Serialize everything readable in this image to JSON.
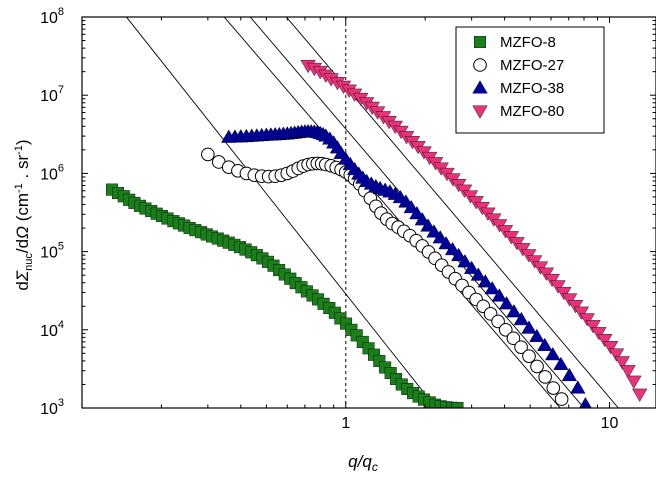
{
  "chart_data": {
    "type": "scatter",
    "title": "",
    "xlabel": {
      "main": "q/q",
      "sub": "c"
    },
    "ylabel": {
      "prefix": "d",
      "sigma": "Σ",
      "sub": "nuc",
      "mid": "/d",
      "omega": "Ω",
      "units_open": " (cm",
      "sup": "-1",
      "units_mid": " . sr",
      "units_close": ")"
    },
    "x_scale": "log",
    "y_scale": "log",
    "xlim": [
      0.1,
      15
    ],
    "ylim": [
      1000,
      100000000
    ],
    "x_tick_labels": [
      {
        "value": 1,
        "text": "1"
      },
      {
        "value": 10,
        "text": "10"
      }
    ],
    "y_tick_labels": [
      {
        "value": 1000,
        "base": "10",
        "exp": "3"
      },
      {
        "value": 10000,
        "base": "10",
        "exp": "4"
      },
      {
        "value": 100000,
        "base": "10",
        "exp": "5"
      },
      {
        "value": 1000000,
        "base": "10",
        "exp": "6"
      },
      {
        "value": 10000000,
        "base": "10",
        "exp": "7"
      },
      {
        "value": 100000000,
        "base": "10",
        "exp": "8"
      }
    ],
    "grid": false,
    "legend_position": "top-right",
    "vertical_reference_line": 1,
    "reference_lines": [
      {
        "x": [
          0.12,
          2.2
        ],
        "y": [
          240000000,
          1000
        ]
      },
      {
        "x": [
          0.29,
          6.5
        ],
        "y": [
          200000000,
          1000
        ]
      },
      {
        "x": [
          0.36,
          8.0
        ],
        "y": [
          210000000,
          1000
        ]
      },
      {
        "x": [
          0.5,
          10.8
        ],
        "y": [
          200000000,
          1000
        ]
      }
    ],
    "series": [
      {
        "name": "MZFO-8",
        "marker": "square",
        "color": "#1a7f1a",
        "x": [
          0.13,
          0.137,
          0.144,
          0.151,
          0.158,
          0.166,
          0.174,
          0.183,
          0.192,
          0.201,
          0.211,
          0.222,
          0.233,
          0.244,
          0.256,
          0.269,
          0.283,
          0.297,
          0.311,
          0.327,
          0.343,
          0.36,
          0.378,
          0.397,
          0.417,
          0.438,
          0.46,
          0.483,
          0.507,
          0.532,
          0.559,
          0.587,
          0.616,
          0.646,
          0.679,
          0.712,
          0.748,
          0.785,
          0.824,
          0.866,
          0.909,
          0.954,
          1.002,
          1.05,
          1.1,
          1.16,
          1.22,
          1.28,
          1.34,
          1.41,
          1.48,
          1.55,
          1.63,
          1.71,
          1.8,
          1.89,
          1.98,
          2.08,
          2.18,
          2.29,
          2.41,
          2.53,
          2.65
        ],
        "y": [
          620000,
          560000,
          510000,
          460000,
          420000,
          385000,
          355000,
          330000,
          305000,
          285000,
          265000,
          245000,
          230000,
          215000,
          200000,
          188000,
          177000,
          166000,
          156000,
          147000,
          138000,
          130000,
          122000,
          114000,
          106000,
          98000,
          90000,
          82000,
          74000,
          66000,
          58000,
          51000,
          45000,
          39500,
          35000,
          31000,
          27500,
          24500,
          21500,
          19000,
          16500,
          14000,
          12000,
          10000,
          8500,
          7000,
          5800,
          4800,
          4000,
          3300,
          2800,
          2350,
          2000,
          1750,
          1550,
          1400,
          1280,
          1180,
          1100,
          1050,
          1020,
          1005,
          1000
        ]
      },
      {
        "name": "MZFO-27",
        "marker": "circle-open",
        "color": "#000000",
        "x": [
          0.3,
          0.33,
          0.36,
          0.39,
          0.42,
          0.45,
          0.48,
          0.51,
          0.54,
          0.57,
          0.6,
          0.63,
          0.66,
          0.69,
          0.72,
          0.75,
          0.78,
          0.81,
          0.84,
          0.88,
          0.92,
          0.96,
          1.0,
          1.04,
          1.08,
          1.13,
          1.18,
          1.24,
          1.3,
          1.36,
          1.43,
          1.5,
          1.58,
          1.66,
          1.75,
          1.85,
          1.95,
          2.06,
          2.18,
          2.31,
          2.45,
          2.6,
          2.76,
          2.93,
          3.12,
          3.32,
          3.54,
          3.78,
          4.04,
          4.32,
          4.62,
          4.95,
          5.31,
          5.7,
          6.12,
          6.58
        ],
        "y": [
          1750000,
          1400000,
          1200000,
          1080000,
          1000000,
          950000,
          920000,
          910000,
          920000,
          950000,
          1000000,
          1070000,
          1160000,
          1240000,
          1300000,
          1330000,
          1340000,
          1330000,
          1300000,
          1250000,
          1190000,
          1120000,
          1040000,
          950000,
          850000,
          730000,
          600000,
          480000,
          380000,
          310000,
          260000,
          228000,
          205000,
          182000,
          160000,
          138000,
          118000,
          99000,
          82000,
          67000,
          55000,
          45000,
          37000,
          30000,
          24500,
          20000,
          16000,
          12800,
          10000,
          7800,
          6000,
          4600,
          3400,
          2500,
          1800,
          1300
        ]
      },
      {
        "name": "MZFO-38",
        "marker": "triangle-up",
        "color": "#00009c",
        "x": [
          0.36,
          0.38,
          0.4,
          0.42,
          0.44,
          0.46,
          0.48,
          0.5,
          0.52,
          0.54,
          0.56,
          0.58,
          0.6,
          0.62,
          0.64,
          0.66,
          0.68,
          0.7,
          0.72,
          0.74,
          0.76,
          0.78,
          0.8,
          0.82,
          0.84,
          0.87,
          0.9,
          0.93,
          0.96,
          1.0,
          1.04,
          1.08,
          1.12,
          1.16,
          1.2,
          1.25,
          1.3,
          1.35,
          1.41,
          1.47,
          1.54,
          1.61,
          1.69,
          1.77,
          1.86,
          1.95,
          2.05,
          2.16,
          2.28,
          2.4,
          2.54,
          2.68,
          2.83,
          3.0,
          3.18,
          3.38,
          3.59,
          3.82,
          4.07,
          4.34,
          4.63,
          4.95,
          5.3,
          5.68,
          6.09,
          6.54,
          7.04,
          7.58,
          8.1
        ],
        "y": [
          2900000,
          2920000,
          2940000,
          2960000,
          2990000,
          3020000,
          3050000,
          3080000,
          3100000,
          3120000,
          3140000,
          3170000,
          3200000,
          3240000,
          3280000,
          3330000,
          3370000,
          3400000,
          3420000,
          3410000,
          3380000,
          3330000,
          3250000,
          3140000,
          3000000,
          2750000,
          2450000,
          2120000,
          1800000,
          1520000,
          1300000,
          1120000,
          980000,
          870000,
          790000,
          730000,
          680000,
          640000,
          610000,
          580000,
          540000,
          490000,
          430000,
          365000,
          305000,
          255000,
          212000,
          178000,
          150000,
          126000,
          106000,
          89000,
          74000,
          61000,
          50000,
          41000,
          33500,
          27000,
          21500,
          17000,
          13500,
          10500,
          8200,
          6300,
          4800,
          3600,
          2600,
          1800,
          1100
        ]
      },
      {
        "name": "MZFO-80",
        "marker": "triangle-down",
        "color": "#e8327a",
        "x": [
          0.72,
          0.76,
          0.8,
          0.84,
          0.88,
          0.93,
          0.98,
          1.03,
          1.08,
          1.14,
          1.2,
          1.26,
          1.32,
          1.39,
          1.46,
          1.54,
          1.62,
          1.7,
          1.79,
          1.88,
          1.98,
          2.08,
          2.19,
          2.3,
          2.42,
          2.55,
          2.68,
          2.82,
          2.97,
          3.12,
          3.29,
          3.46,
          3.64,
          3.83,
          4.03,
          4.24,
          4.46,
          4.69,
          4.94,
          5.2,
          5.47,
          5.76,
          6.06,
          6.38,
          6.71,
          7.06,
          7.43,
          7.82,
          8.23,
          8.66,
          9.11,
          9.59,
          10.09,
          10.62,
          11.17,
          11.75,
          12.36,
          13.01
        ],
        "y": [
          24000000,
          22000000,
          20000000,
          18000000,
          16200000,
          14500000,
          13000000,
          11600000,
          10300000,
          9100000,
          8000000,
          7000000,
          6100000,
          5300000,
          4600000,
          4000000,
          3450000,
          2950000,
          2550000,
          2200000,
          1880000,
          1600000,
          1370000,
          1170000,
          1000000,
          850000,
          720000,
          610000,
          515000,
          435000,
          367000,
          310000,
          261000,
          220000,
          185000,
          155000,
          130000,
          109000,
          91000,
          76000,
          63500,
          53000,
          44000,
          36500,
          30000,
          24800,
          20400,
          16800,
          13800,
          11300,
          9200,
          7500,
          6100,
          4900,
          3900,
          3000,
          2200,
          1500
        ]
      }
    ]
  }
}
